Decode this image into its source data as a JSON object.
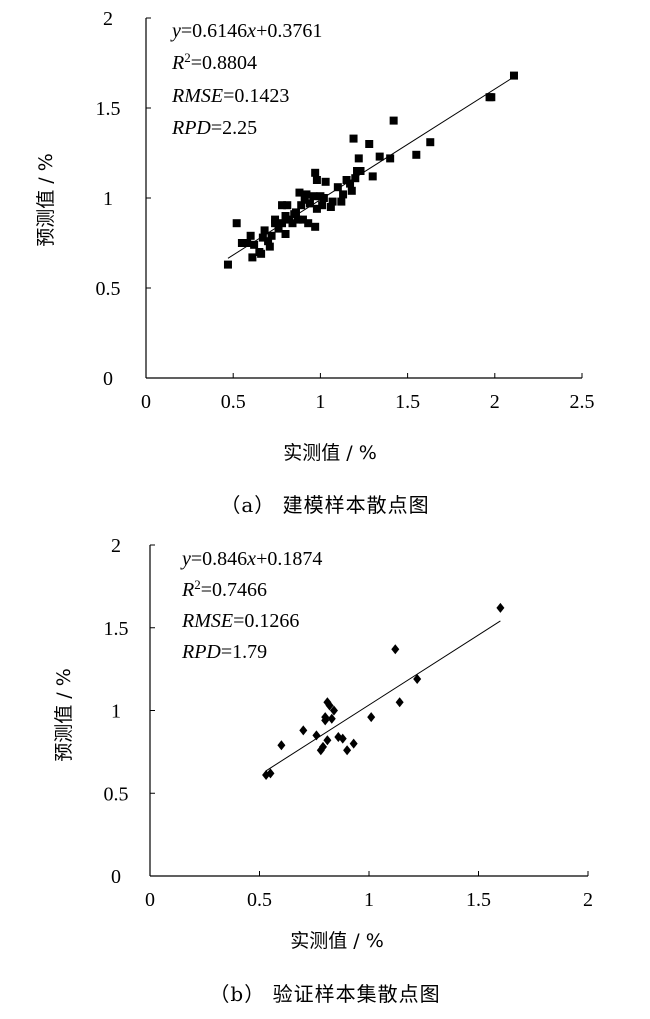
{
  "chart_data": [
    {
      "type": "scatter",
      "caption": "（a） 建模样本散点图",
      "xlabel": "实测值 / %",
      "ylabel": "预测值 / %",
      "xlim": [
        0,
        2.5
      ],
      "ylim": [
        0,
        2
      ],
      "xticks": [
        "0",
        "0.5",
        "1",
        "1.5",
        "2",
        "2.5"
      ],
      "yticks": [
        "0",
        "0.5",
        "1",
        "1.5",
        "2"
      ],
      "marker": "square",
      "stats": {
        "equation": "y=0.6146x+0.3761",
        "r2": "R2=0.8804",
        "rmse": "RMSE=0.1423",
        "rpd": "RPD=2.25"
      },
      "fit": {
        "slope": 0.6146,
        "intercept": 0.3761,
        "x_range": [
          0.47,
          2.11
        ]
      },
      "points": [
        [
          0.47,
          0.63
        ],
        [
          0.52,
          0.86
        ],
        [
          0.55,
          0.75
        ],
        [
          0.58,
          0.75
        ],
        [
          0.6,
          0.79
        ],
        [
          0.61,
          0.67
        ],
        [
          0.62,
          0.74
        ],
        [
          0.65,
          0.7
        ],
        [
          0.66,
          0.69
        ],
        [
          0.67,
          0.78
        ],
        [
          0.68,
          0.82
        ],
        [
          0.7,
          0.76
        ],
        [
          0.71,
          0.73
        ],
        [
          0.72,
          0.79
        ],
        [
          0.74,
          0.86
        ],
        [
          0.74,
          0.88
        ],
        [
          0.76,
          0.83
        ],
        [
          0.78,
          0.86
        ],
        [
          0.78,
          0.96
        ],
        [
          0.8,
          0.8
        ],
        [
          0.8,
          0.9
        ],
        [
          0.81,
          0.96
        ],
        [
          0.82,
          0.88
        ],
        [
          0.84,
          0.86
        ],
        [
          0.85,
          0.91
        ],
        [
          0.86,
          0.92
        ],
        [
          0.87,
          0.88
        ],
        [
          0.88,
          1.03
        ],
        [
          0.89,
          0.96
        ],
        [
          0.9,
          0.88
        ],
        [
          0.91,
          0.99
        ],
        [
          0.92,
          1.02
        ],
        [
          0.93,
          0.86
        ],
        [
          0.94,
          0.97
        ],
        [
          0.96,
          1.01
        ],
        [
          0.97,
          1.14
        ],
        [
          0.97,
          0.84
        ],
        [
          0.98,
          0.94
        ],
        [
          0.98,
          1.1
        ],
        [
          1.0,
          1.01
        ],
        [
          1.01,
          0.96
        ],
        [
          1.02,
          1.0
        ],
        [
          1.03,
          1.09
        ],
        [
          1.06,
          0.95
        ],
        [
          1.07,
          0.98
        ],
        [
          1.1,
          1.06
        ],
        [
          1.12,
          0.98
        ],
        [
          1.13,
          1.02
        ],
        [
          1.15,
          1.1
        ],
        [
          1.17,
          1.08
        ],
        [
          1.18,
          1.04
        ],
        [
          1.19,
          1.33
        ],
        [
          1.2,
          1.11
        ],
        [
          1.21,
          1.15
        ],
        [
          1.22,
          1.22
        ],
        [
          1.23,
          1.15
        ],
        [
          1.28,
          1.3
        ],
        [
          1.3,
          1.12
        ],
        [
          1.34,
          1.23
        ],
        [
          1.4,
          1.22
        ],
        [
          1.42,
          1.43
        ],
        [
          1.55,
          1.24
        ],
        [
          1.63,
          1.31
        ],
        [
          1.97,
          1.56
        ],
        [
          1.98,
          1.56
        ],
        [
          2.11,
          1.68
        ]
      ]
    },
    {
      "type": "scatter",
      "caption": "（b） 验证样本集散点图",
      "xlabel": "实测值 / %",
      "ylabel": "预测值 / %",
      "xlim": [
        0,
        2
      ],
      "ylim": [
        0,
        2
      ],
      "xticks": [
        "0",
        "0.5",
        "1",
        "1.5",
        "2"
      ],
      "yticks": [
        "0",
        "0.5",
        "1",
        "1.5",
        "2"
      ],
      "marker": "diamond",
      "stats": {
        "equation": "y=0.846x+0.1874",
        "r2": "R2=0.7466",
        "rmse": "RMSE=0.1266",
        "rpd": "RPD=1.79"
      },
      "fit": {
        "slope": 0.846,
        "intercept": 0.1874,
        "x_range": [
          0.53,
          1.6
        ]
      },
      "points": [
        [
          0.53,
          0.61
        ],
        [
          0.55,
          0.62
        ],
        [
          0.6,
          0.79
        ],
        [
          0.7,
          0.88
        ],
        [
          0.76,
          0.85
        ],
        [
          0.78,
          0.76
        ],
        [
          0.79,
          0.78
        ],
        [
          0.8,
          0.94
        ],
        [
          0.8,
          0.96
        ],
        [
          0.81,
          1.05
        ],
        [
          0.81,
          0.82
        ],
        [
          0.82,
          1.03
        ],
        [
          0.83,
          0.95
        ],
        [
          0.84,
          1.0
        ],
        [
          0.86,
          0.84
        ],
        [
          0.88,
          0.83
        ],
        [
          0.9,
          0.76
        ],
        [
          0.93,
          0.8
        ],
        [
          1.01,
          0.96
        ],
        [
          1.12,
          1.37
        ],
        [
          1.14,
          1.05
        ],
        [
          1.22,
          1.19
        ],
        [
          1.6,
          1.62
        ]
      ]
    }
  ]
}
